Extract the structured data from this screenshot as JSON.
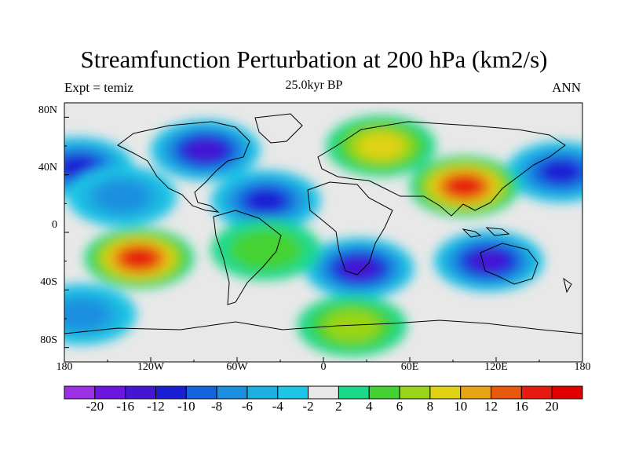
{
  "title": "Streamfunction Perturbation at 200 hPa (km2/s)",
  "subtitle_left": "Expt = temiz",
  "subtitle_center": "25.0kyr BP",
  "subtitle_right": "ANN",
  "y_ticks": [
    "80N",
    "40N",
    "0",
    "40S",
    "80S"
  ],
  "x_ticks": [
    "180",
    "120W",
    "60W",
    "0",
    "60E",
    "120E",
    "180"
  ],
  "colorbar": {
    "labels": [
      "-20",
      "-16",
      "-12",
      "-10",
      "-8",
      "-6",
      "-4",
      "-2",
      "2",
      "4",
      "6",
      "8",
      "10",
      "12",
      "16",
      "20"
    ],
    "colors": [
      "#9b30e6",
      "#6c14e0",
      "#4416d4",
      "#1a1fd4",
      "#1564de",
      "#1a8fe0",
      "#1cb0e0",
      "#1dc6e6",
      "#e8e8e8",
      "#1ad98a",
      "#44d232",
      "#9ad418",
      "#dfd215",
      "#e7a513",
      "#e8590d",
      "#e51b0f",
      "#e00000"
    ]
  },
  "chart_data": {
    "type": "heatmap",
    "title": "Streamfunction Perturbation at 200 hPa (km2/s)",
    "x_range": [
      -180,
      180
    ],
    "y_range": [
      -90,
      90
    ],
    "units": "km2/s",
    "levels": [
      -20,
      -16,
      -12,
      -10,
      -8,
      -6,
      -4,
      -2,
      2,
      4,
      6,
      8,
      10,
      12,
      16,
      20
    ],
    "features": [
      {
        "lon": -82,
        "lat": 57,
        "value": -12
      },
      {
        "lon": -170,
        "lat": 45,
        "value": -10
      },
      {
        "lon": -140,
        "lat": 25,
        "value": -6
      },
      {
        "lon": -40,
        "lat": 22,
        "value": -10
      },
      {
        "lon": 165,
        "lat": 42,
        "value": -10
      },
      {
        "lon": 98,
        "lat": 32,
        "value": 16
      },
      {
        "lon": 40,
        "lat": 60,
        "value": 8
      },
      {
        "lon": -128,
        "lat": -18,
        "value": 16
      },
      {
        "lon": 25,
        "lat": -25,
        "value": -12
      },
      {
        "lon": 115,
        "lat": -20,
        "value": -12
      },
      {
        "lon": -40,
        "lat": -12,
        "value": 4
      },
      {
        "lon": -168,
        "lat": -57,
        "value": -6
      },
      {
        "lon": 20,
        "lat": -65,
        "value": 6
      }
    ]
  }
}
